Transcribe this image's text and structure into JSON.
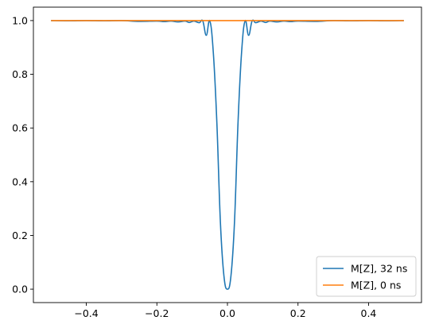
{
  "chart_data": {
    "type": "line",
    "title": "",
    "xlabel": "",
    "ylabel": "",
    "xlim": [
      -0.55,
      0.55
    ],
    "ylim": [
      -0.05,
      1.05
    ],
    "xticks": [
      -0.4,
      -0.2,
      0.0,
      0.2,
      0.4
    ],
    "xtick_labels": [
      "−0.4",
      "−0.2",
      "0.0",
      "0.2",
      "0.4"
    ],
    "yticks": [
      0.0,
      0.2,
      0.4,
      0.6,
      0.8,
      1.0
    ],
    "ytick_labels": [
      "0.0",
      "0.2",
      "0.4",
      "0.6",
      "0.8",
      "1.0"
    ],
    "grid": false,
    "legend_position": "lower-right",
    "series": [
      {
        "name": "M[Z], 32 ns",
        "color": "#1f77b4",
        "x": [
          -0.5,
          -0.45,
          -0.4,
          -0.35,
          -0.3,
          -0.25,
          -0.2,
          -0.18,
          -0.16,
          -0.14,
          -0.12,
          -0.108,
          -0.095,
          -0.08,
          -0.07,
          -0.06,
          -0.05,
          -0.04,
          -0.03,
          -0.02,
          -0.01,
          0.0,
          0.01,
          0.02,
          0.03,
          0.04,
          0.05,
          0.06,
          0.07,
          0.08,
          0.095,
          0.108,
          0.12,
          0.14,
          0.16,
          0.18,
          0.2,
          0.25,
          0.3,
          0.35,
          0.4,
          0.45,
          0.5
        ],
        "y": [
          1.0,
          0.999,
          1.0,
          0.999,
          1.0,
          0.997,
          0.998,
          0.996,
          0.998,
          0.995,
          0.998,
          0.993,
          0.998,
          0.992,
          0.999,
          0.945,
          0.999,
          0.88,
          0.62,
          0.25,
          0.05,
          0.0,
          0.05,
          0.25,
          0.62,
          0.88,
          0.999,
          0.945,
          0.999,
          0.992,
          0.998,
          0.993,
          0.998,
          0.995,
          0.998,
          0.996,
          0.998,
          0.997,
          1.0,
          0.999,
          1.0,
          0.999,
          1.0
        ]
      },
      {
        "name": "M[Z], 0 ns",
        "color": "#ff7f0e",
        "x": [
          -0.5,
          0.5
        ],
        "y": [
          1.0,
          1.0
        ]
      }
    ]
  }
}
